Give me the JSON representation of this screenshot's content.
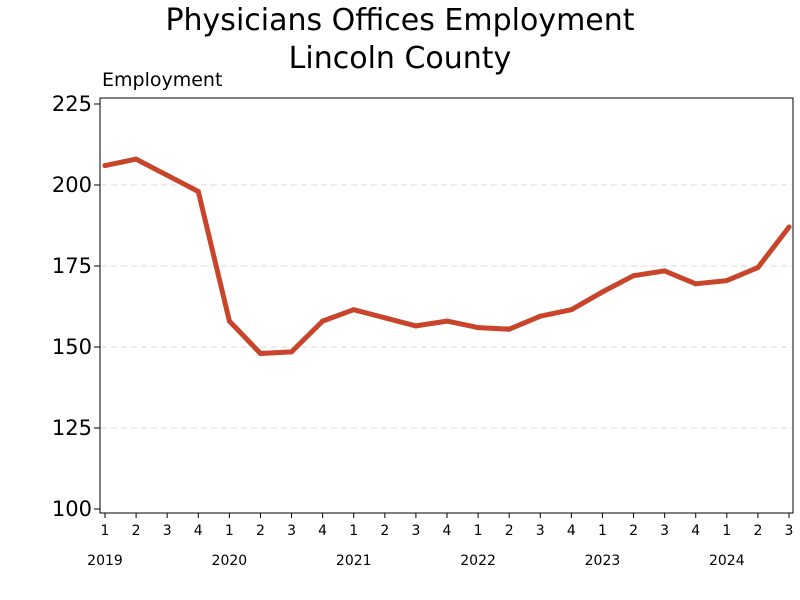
{
  "chart_data": {
    "type": "line",
    "title": [
      "Physicians Offices Employment",
      "Lincoln County"
    ],
    "ylabel": "Employment",
    "ylim": [
      100,
      225
    ],
    "yticks": [
      100,
      125,
      150,
      175,
      200,
      225
    ],
    "grid": true,
    "color": "#c8442b",
    "categories": [
      "2019 Q1",
      "2019 Q2",
      "2019 Q3",
      "2019 Q4",
      "2020 Q1",
      "2020 Q2",
      "2020 Q3",
      "2020 Q4",
      "2021 Q1",
      "2021 Q2",
      "2021 Q3",
      "2021 Q4",
      "2022 Q1",
      "2022 Q2",
      "2022 Q3",
      "2022 Q4",
      "2023 Q1",
      "2023 Q2",
      "2023 Q3",
      "2023 Q4",
      "2024 Q1",
      "2024 Q2",
      "2024 Q3"
    ],
    "quarter_labels": [
      "1",
      "2",
      "3",
      "4",
      "1",
      "2",
      "3",
      "4",
      "1",
      "2",
      "3",
      "4",
      "1",
      "2",
      "3",
      "4",
      "1",
      "2",
      "3",
      "4",
      "1",
      "2",
      "3"
    ],
    "years": [
      "2019",
      "2020",
      "2021",
      "2022",
      "2023",
      "2024"
    ],
    "values": [
      206,
      208,
      203,
      198,
      158,
      148,
      148.5,
      158,
      161.5,
      159,
      156.5,
      158,
      156,
      155.5,
      159.5,
      161.5,
      167,
      172,
      173.5,
      169.5,
      170.5,
      174.5,
      187
    ]
  }
}
